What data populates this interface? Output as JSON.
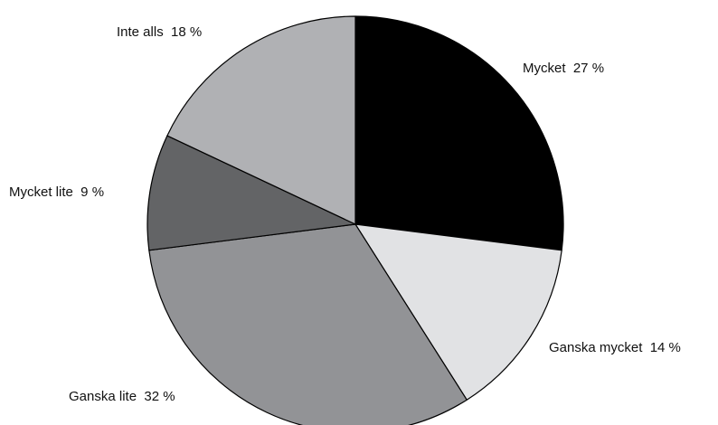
{
  "chart_data": {
    "type": "pie",
    "title": "",
    "start_angle_deg": 0,
    "direction": "clockwise",
    "slices": [
      {
        "label": "Mycket",
        "value": 27,
        "display": "Mycket  27 %",
        "color": "#000000"
      },
      {
        "label": "Ganska mycket",
        "value": 14,
        "display": "Ganska mycket  14 %",
        "color": "#e1e2e4"
      },
      {
        "label": "Ganska lite",
        "value": 32,
        "display": "Ganska lite  32 %",
        "color": "#929396"
      },
      {
        "label": "Mycket lite",
        "value": 9,
        "display": "Mycket lite  9 %",
        "color": "#636466"
      },
      {
        "label": "Inte alls",
        "value": 18,
        "display": "Inte alls  18 %",
        "color": "#b0b1b4"
      }
    ],
    "legend": "none"
  }
}
